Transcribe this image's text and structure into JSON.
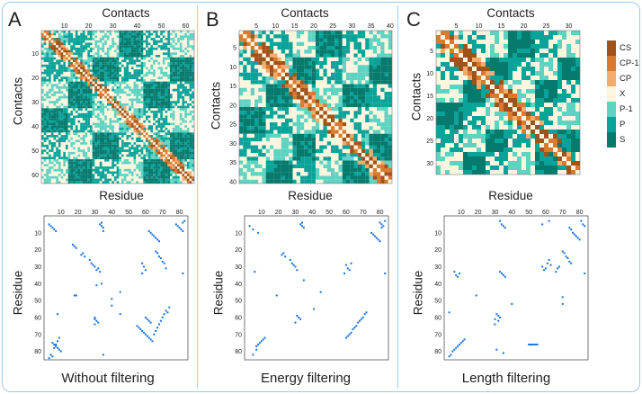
{
  "panels": [
    {
      "letter": "A",
      "caption": "Without filtering"
    },
    {
      "letter": "B",
      "caption": "Energy filtering"
    },
    {
      "letter": "C",
      "caption": "Length filtering"
    }
  ],
  "colors": {
    "CS": "#a0521b",
    "CP-1": "#d97a2e",
    "CP": "#f2ad6c",
    "X": "#fdf6df",
    "P-1": "#5fd3c2",
    "P": "#0aa39a",
    "S": "#067a6d",
    "dot": "#1a73d9",
    "grid": "#ffffff"
  },
  "chart_data": [
    {
      "type": "heatmap",
      "panel": "A",
      "title": "",
      "xlabel": "Contacts",
      "ylabel": "Contacts",
      "n": 63,
      "x_ticks": [
        10,
        20,
        30,
        40,
        50,
        60
      ],
      "y_ticks": [
        10,
        20,
        30,
        40,
        50,
        60
      ]
    },
    {
      "type": "heatmap",
      "panel": "B",
      "title": "",
      "xlabel": "Contacts",
      "ylabel": "Contacts",
      "n": 40,
      "x_ticks": [
        5,
        10,
        15,
        20,
        25,
        30,
        35,
        40
      ],
      "y_ticks": [
        5,
        10,
        15,
        20,
        25,
        30,
        35,
        40
      ]
    },
    {
      "type": "heatmap",
      "panel": "C",
      "title": "",
      "xlabel": "Contacts",
      "ylabel": "Contacts",
      "n": 32,
      "x_ticks": [
        5,
        10,
        15,
        20,
        25,
        30
      ],
      "y_ticks": [
        5,
        10,
        15,
        20,
        25,
        30
      ],
      "legend": [
        "CS",
        "CP-1",
        "CP",
        "X",
        "P-1",
        "P",
        "S"
      ]
    },
    {
      "type": "scatter",
      "panel": "A",
      "xlabel": "Residue",
      "ylabel": "Residue",
      "xlim": [
        0,
        85
      ],
      "ylim": [
        0,
        85
      ],
      "x_ticks": [
        10,
        20,
        30,
        40,
        50,
        60,
        70,
        80
      ],
      "y_ticks": [
        10,
        20,
        30,
        40,
        50,
        60,
        70,
        80
      ],
      "points": [
        [
          3,
          5
        ],
        [
          4,
          6
        ],
        [
          5,
          7
        ],
        [
          6,
          8
        ],
        [
          7,
          9
        ],
        [
          17,
          17
        ],
        [
          18,
          18
        ],
        [
          19,
          19
        ],
        [
          22,
          23
        ],
        [
          23,
          22
        ],
        [
          24,
          24
        ],
        [
          27,
          26
        ],
        [
          28,
          28
        ],
        [
          29,
          29
        ],
        [
          30,
          30
        ],
        [
          31,
          32
        ],
        [
          32,
          31
        ],
        [
          33,
          33
        ],
        [
          33,
          5
        ],
        [
          34,
          4
        ],
        [
          34,
          6
        ],
        [
          35,
          7
        ],
        [
          35,
          9
        ],
        [
          62,
          9
        ],
        [
          63,
          10
        ],
        [
          64,
          11
        ],
        [
          65,
          12
        ],
        [
          66,
          13
        ],
        [
          67,
          14
        ],
        [
          68,
          15
        ],
        [
          66,
          21
        ],
        [
          67,
          22
        ],
        [
          68,
          24
        ],
        [
          69,
          25
        ],
        [
          70,
          27
        ],
        [
          71,
          28
        ],
        [
          72,
          31
        ],
        [
          78,
          5
        ],
        [
          79,
          6
        ],
        [
          80,
          7
        ],
        [
          81,
          8
        ],
        [
          82,
          9
        ],
        [
          82,
          4
        ],
        [
          83,
          3
        ],
        [
          58,
          28
        ],
        [
          59,
          30
        ],
        [
          60,
          32
        ],
        [
          58,
          34
        ],
        [
          60,
          60
        ],
        [
          61,
          61
        ],
        [
          62,
          62
        ],
        [
          63,
          63
        ],
        [
          30,
          60
        ],
        [
          31,
          62
        ],
        [
          30,
          64
        ],
        [
          32,
          63
        ],
        [
          30,
          61
        ],
        [
          40,
          49
        ],
        [
          40,
          53
        ],
        [
          45,
          45
        ],
        [
          45,
          58
        ],
        [
          18,
          47
        ],
        [
          19,
          47
        ],
        [
          55,
          65
        ],
        [
          56,
          66
        ],
        [
          57,
          67
        ],
        [
          58,
          68
        ],
        [
          59,
          69
        ],
        [
          60,
          70
        ],
        [
          61,
          71
        ],
        [
          62,
          72
        ],
        [
          63,
          73
        ],
        [
          64,
          74
        ],
        [
          65,
          70
        ],
        [
          66,
          68
        ],
        [
          67,
          66
        ],
        [
          68,
          64
        ],
        [
          69,
          62
        ],
        [
          70,
          60
        ],
        [
          71,
          58
        ],
        [
          72,
          56
        ],
        [
          73,
          57
        ],
        [
          74,
          54
        ],
        [
          82,
          34
        ],
        [
          5,
          75
        ],
        [
          6,
          76
        ],
        [
          7,
          77
        ],
        [
          8,
          78
        ],
        [
          9,
          79
        ],
        [
          10,
          80
        ],
        [
          4,
          82
        ],
        [
          5,
          83
        ],
        [
          3,
          84
        ],
        [
          6,
          78
        ],
        [
          7,
          76
        ],
        [
          8,
          74
        ],
        [
          9,
          72
        ],
        [
          35,
          82
        ],
        [
          8,
          58
        ],
        [
          31,
          41
        ],
        [
          34,
          40
        ]
      ]
    },
    {
      "type": "scatter",
      "panel": "B",
      "xlabel": "Residue",
      "ylabel": "Residue",
      "xlim": [
        0,
        85
      ],
      "ylim": [
        0,
        85
      ],
      "x_ticks": [
        10,
        20,
        30,
        40,
        50,
        60,
        70,
        80
      ],
      "y_ticks": [
        10,
        20,
        30,
        40,
        50,
        60,
        70,
        80
      ],
      "points": [
        [
          22,
          23
        ],
        [
          23,
          22
        ],
        [
          24,
          24
        ],
        [
          27,
          26
        ],
        [
          28,
          28
        ],
        [
          29,
          29
        ],
        [
          30,
          30
        ],
        [
          31,
          32
        ],
        [
          33,
          5
        ],
        [
          34,
          4
        ],
        [
          34,
          6
        ],
        [
          35,
          7
        ],
        [
          75,
          10
        ],
        [
          76,
          11
        ],
        [
          77,
          12
        ],
        [
          78,
          13
        ],
        [
          79,
          14
        ],
        [
          80,
          15
        ],
        [
          81,
          5
        ],
        [
          82,
          6
        ],
        [
          83,
          3
        ],
        [
          60,
          29
        ],
        [
          61,
          31
        ],
        [
          62,
          32
        ],
        [
          59,
          34
        ],
        [
          63,
          28
        ],
        [
          31,
          59
        ],
        [
          32,
          60
        ],
        [
          33,
          61
        ],
        [
          30,
          63
        ],
        [
          45,
          45
        ],
        [
          41,
          55
        ],
        [
          19,
          47
        ],
        [
          60,
          72
        ],
        [
          61,
          71
        ],
        [
          62,
          70
        ],
        [
          63,
          69
        ],
        [
          64,
          67
        ],
        [
          65,
          66
        ],
        [
          66,
          65
        ],
        [
          67,
          63
        ],
        [
          68,
          62
        ],
        [
          69,
          61
        ],
        [
          70,
          60
        ],
        [
          71,
          58
        ],
        [
          72,
          57
        ],
        [
          7,
          77
        ],
        [
          8,
          76
        ],
        [
          9,
          75
        ],
        [
          10,
          74
        ],
        [
          11,
          73
        ],
        [
          12,
          72
        ],
        [
          5,
          82
        ],
        [
          7,
          79
        ],
        [
          83,
          34
        ],
        [
          3,
          6
        ],
        [
          5,
          8
        ],
        [
          8,
          10
        ],
        [
          6,
          33
        ],
        [
          35,
          38
        ],
        [
          80,
          4
        ],
        [
          81,
          7
        ]
      ]
    },
    {
      "type": "scatter",
      "panel": "C",
      "xlabel": "Residue",
      "ylabel": "Residue",
      "xlim": [
        0,
        85
      ],
      "ylim": [
        0,
        85
      ],
      "x_ticks": [
        10,
        20,
        30,
        40,
        50,
        60,
        70,
        80
      ],
      "y_ticks": [
        10,
        20,
        30,
        40,
        50,
        60,
        70,
        80
      ],
      "points": [
        [
          33,
          3
        ],
        [
          34,
          5
        ],
        [
          35,
          6
        ],
        [
          36,
          7
        ],
        [
          33,
          33
        ],
        [
          34,
          34
        ],
        [
          35,
          35
        ],
        [
          36,
          36
        ],
        [
          58,
          5
        ],
        [
          62,
          3
        ],
        [
          74,
          7
        ],
        [
          75,
          8
        ],
        [
          76,
          10
        ],
        [
          77,
          11
        ],
        [
          78,
          12
        ],
        [
          79,
          13
        ],
        [
          80,
          14
        ],
        [
          81,
          3
        ],
        [
          82,
          5
        ],
        [
          83,
          6
        ],
        [
          70,
          21
        ],
        [
          71,
          22
        ],
        [
          72,
          24
        ],
        [
          73,
          25
        ],
        [
          74,
          27
        ],
        [
          75,
          28
        ],
        [
          68,
          30
        ],
        [
          67,
          31
        ],
        [
          66,
          33
        ],
        [
          58,
          30
        ],
        [
          59,
          32
        ],
        [
          61,
          28
        ],
        [
          62,
          26
        ],
        [
          63,
          29
        ],
        [
          60,
          31
        ],
        [
          32,
          59
        ],
        [
          33,
          60
        ],
        [
          31,
          58
        ],
        [
          30,
          61
        ],
        [
          32,
          62
        ],
        [
          30,
          64
        ],
        [
          19,
          47
        ],
        [
          70,
          48
        ],
        [
          70,
          52
        ],
        [
          40,
          52
        ],
        [
          50,
          76
        ],
        [
          51,
          76
        ],
        [
          52,
          76
        ],
        [
          53,
          76
        ],
        [
          54,
          76
        ],
        [
          55,
          76
        ],
        [
          3,
          83
        ],
        [
          4,
          82
        ],
        [
          5,
          80
        ],
        [
          6,
          79
        ],
        [
          7,
          78
        ],
        [
          8,
          77
        ],
        [
          9,
          76
        ],
        [
          10,
          75
        ],
        [
          11,
          74
        ],
        [
          12,
          73
        ],
        [
          6,
          33
        ],
        [
          7,
          35
        ],
        [
          8,
          36
        ],
        [
          9,
          34
        ],
        [
          31,
          79
        ],
        [
          83,
          34
        ],
        [
          35,
          81
        ],
        [
          3,
          57
        ]
      ]
    }
  ]
}
